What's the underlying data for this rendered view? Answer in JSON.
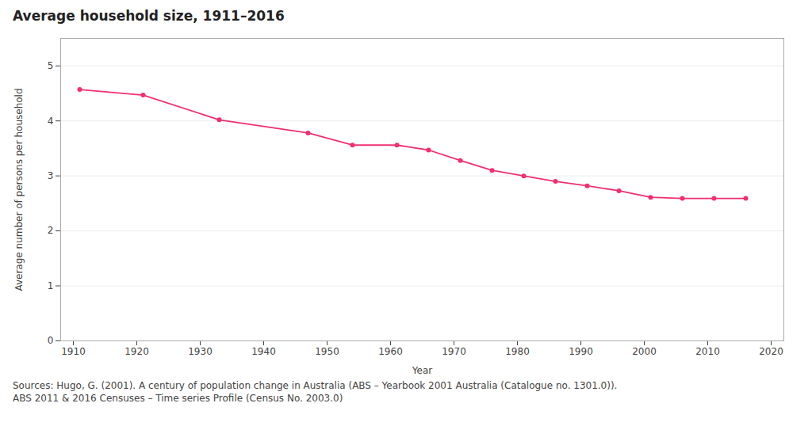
{
  "chart_data": {
    "type": "line",
    "title": "Average household size, 1911–2016",
    "xlabel": "Year",
    "ylabel": "Average number of persons per household",
    "annotations": [
      "Sources: Hugo, G. (2001). A century of population change in Australia (ABS – Yearbook 2001 Australia (Catalogue no. 1301.0)).",
      "ABS 2011 & 2016 Censuses – Time series Profile (Census No. 2003.0)"
    ],
    "x": [
      1911,
      1921,
      1933,
      1947,
      1954,
      1961,
      1966,
      1971,
      1976,
      1981,
      1986,
      1991,
      1996,
      2001,
      2006,
      2011,
      2016
    ],
    "values": [
      4.57,
      4.47,
      4.02,
      3.78,
      3.56,
      3.56,
      3.47,
      3.28,
      3.1,
      3.0,
      2.9,
      2.82,
      2.73,
      2.61,
      2.59,
      2.59,
      2.59
    ],
    "color": "#F0306E",
    "marker": "circle",
    "grid": true,
    "xlim": [
      1908,
      2022
    ],
    "xticks": [
      1910,
      1920,
      1930,
      1940,
      1950,
      1960,
      1970,
      1980,
      1990,
      2000,
      2010,
      2020
    ],
    "ylim": [
      0,
      5.5
    ],
    "yticks": [
      0,
      1,
      2,
      3,
      4,
      5
    ]
  }
}
